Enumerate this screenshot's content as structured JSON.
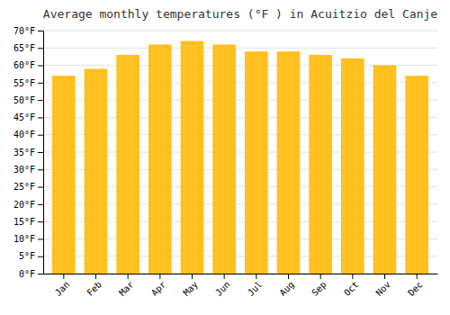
{
  "chart_data": {
    "type": "bar",
    "title": "Average monthly temperatures (°F ) in Acuitzio del Canje",
    "categories": [
      "Jan",
      "Feb",
      "Mar",
      "Apr",
      "May",
      "Jun",
      "Jul",
      "Aug",
      "Sep",
      "Oct",
      "Nov",
      "Dec"
    ],
    "values": [
      57,
      59,
      63,
      66,
      67,
      66,
      64,
      64,
      63,
      62,
      60,
      57
    ],
    "color": "#FFC020",
    "ylim": [
      0,
      70
    ],
    "yticks": [
      {
        "value": 0,
        "label": "0°F"
      },
      {
        "value": 5,
        "label": "5°F"
      },
      {
        "value": 10,
        "label": "10°F"
      },
      {
        "value": 15,
        "label": "15°F"
      },
      {
        "value": 20,
        "label": "20°F"
      },
      {
        "value": 25,
        "label": "25°F"
      },
      {
        "value": 30,
        "label": "30°F"
      },
      {
        "value": 35,
        "label": "35°F"
      },
      {
        "value": 40,
        "label": "40°F"
      },
      {
        "value": 45,
        "label": "45°F"
      },
      {
        "value": 50,
        "label": "50°F"
      },
      {
        "value": 55,
        "label": "55°F"
      },
      {
        "value": 60,
        "label": "60°F"
      },
      {
        "value": 65,
        "label": "65°F"
      },
      {
        "value": 70,
        "label": "70°F"
      }
    ],
    "grid": true
  }
}
